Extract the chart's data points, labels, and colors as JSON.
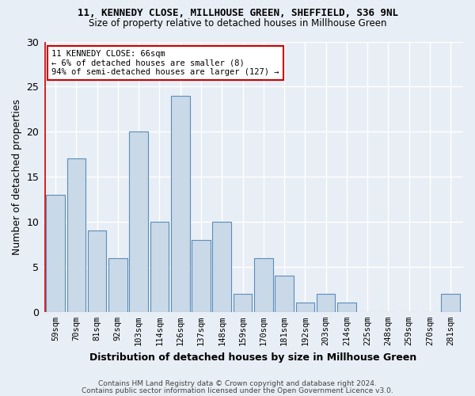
{
  "title1": "11, KENNEDY CLOSE, MILLHOUSE GREEN, SHEFFIELD, S36 9NL",
  "title2": "Size of property relative to detached houses in Millhouse Green",
  "xlabel": "Distribution of detached houses by size in Millhouse Green",
  "ylabel": "Number of detached properties",
  "categories": [
    "59sqm",
    "70sqm",
    "81sqm",
    "92sqm",
    "103sqm",
    "114sqm",
    "126sqm",
    "137sqm",
    "148sqm",
    "159sqm",
    "170sqm",
    "181sqm",
    "192sqm",
    "203sqm",
    "214sqm",
    "225sqm",
    "248sqm",
    "259sqm",
    "270sqm",
    "281sqm"
  ],
  "values": [
    13,
    17,
    9,
    6,
    20,
    10,
    24,
    8,
    10,
    2,
    6,
    4,
    1,
    2,
    1,
    0,
    0,
    0,
    0,
    2
  ],
  "bar_color": "#c9d9e8",
  "bar_edge_color": "#5b8db8",
  "annotation_text": "11 KENNEDY CLOSE: 66sqm\n← 6% of detached houses are smaller (8)\n94% of semi-detached houses are larger (127) →",
  "annotation_box_color": "#ffffff",
  "annotation_box_edge": "#cc0000",
  "annotation_text_color": "#000000",
  "red_line_color": "#cc0000",
  "ylim": [
    0,
    30
  ],
  "yticks": [
    0,
    5,
    10,
    15,
    20,
    25,
    30
  ],
  "footer1": "Contains HM Land Registry data © Crown copyright and database right 2024.",
  "footer2": "Contains public sector information licensed under the Open Government Licence v3.0.",
  "bg_color": "#e8eef5",
  "plot_bg_color": "#e8eef5"
}
